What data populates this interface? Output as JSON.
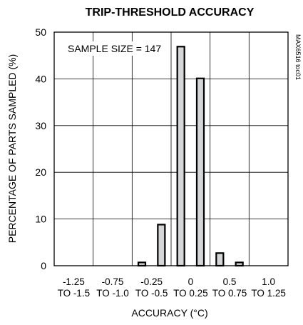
{
  "chart_data": {
    "type": "bar",
    "title": "TRIP-THRESHOLD ACCURACY",
    "xlabel": "ACCURACY (°C)",
    "ylabel": "PERCENTAGE OF PARTS SAMPLED (%)",
    "ylim": [
      0,
      50
    ],
    "yticks": [
      0,
      10,
      20,
      30,
      40,
      50
    ],
    "grid": true,
    "legend": "none",
    "annotation": "SAMPLE SIZE = 147",
    "side_label": "MAX6516 toc01",
    "category_labels": [
      {
        "top": "-1.25",
        "bottom": "TO -1.5"
      },
      {
        "top": "-0.75",
        "bottom": "TO -1.0"
      },
      {
        "top": "-0.25",
        "bottom": "TO -0.5"
      },
      {
        "top": "0",
        "bottom": "TO 0.25"
      },
      {
        "top": "0.5",
        "bottom": "TO 0.75"
      },
      {
        "top": "1.0",
        "bottom": "TO 1.25"
      }
    ],
    "bins": [
      "-1.5",
      "-1.25",
      "-1.0",
      "-0.75",
      "-0.5",
      "-0.25",
      "0",
      "0.25",
      "0.5",
      "0.75",
      "1.0",
      "1.25"
    ],
    "values": [
      0,
      0,
      0,
      0,
      0.7,
      8.8,
      46.9,
      40.1,
      2.7,
      0.7,
      0,
      0
    ],
    "colors": {
      "bar_fill": "#d4d6d8",
      "bar_stroke": "#000000",
      "grid": "#000000"
    }
  }
}
